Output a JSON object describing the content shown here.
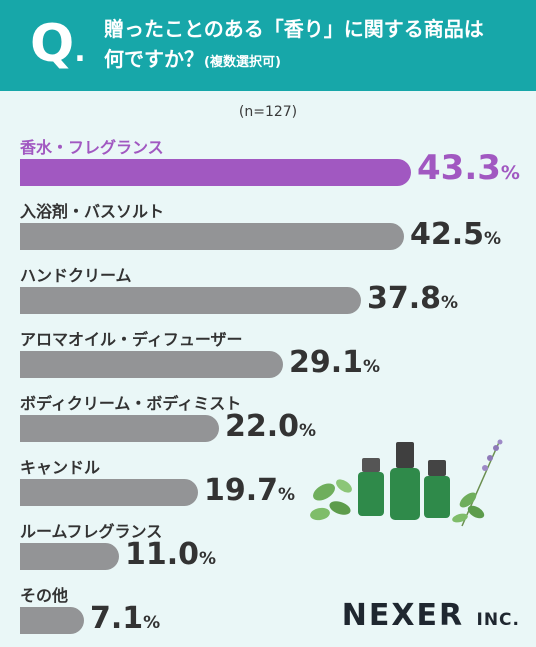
{
  "header": {
    "q_mark": "Q",
    "q_dot": ".",
    "question_line1": "贈ったことのある「香り」に関する商品は",
    "question_line2": "何ですか？",
    "question_note": "(複数選択可)"
  },
  "sample_note": "(n=127)",
  "brand": {
    "name": "NEXER",
    "suffix": "INC."
  },
  "colors": {
    "header": "#17a7a9",
    "highlight": "#a158c1",
    "bar": "#939496",
    "background": "#eaf7f7"
  },
  "chart_data": {
    "type": "bar",
    "orientation": "horizontal",
    "unit": "%",
    "categories": [
      "香水・フレグランス",
      "入浴剤・バスソルト",
      "ハンドクリーム",
      "アロマオイル・ディフューザー",
      "ボディクリーム・ボディミスト",
      "キャンドル",
      "ルームフレグランス",
      "その他"
    ],
    "values": [
      43.3,
      42.5,
      37.8,
      29.1,
      22.0,
      19.7,
      11.0,
      7.1
    ],
    "value_labels": [
      "43.3",
      "42.5",
      "37.8",
      "29.1",
      "22.0",
      "19.7",
      "11.0",
      "7.1"
    ],
    "highlight_index": 0,
    "title": "",
    "xlabel": "",
    "ylabel": ""
  }
}
